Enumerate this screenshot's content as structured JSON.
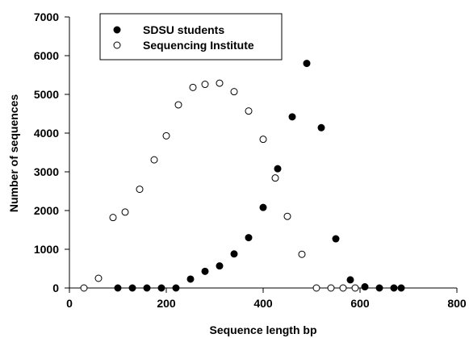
{
  "chart_data": {
    "type": "scatter",
    "title": "",
    "xlabel": "Sequence length bp",
    "ylabel": "Number of sequences",
    "xlim": [
      0,
      800
    ],
    "ylim": [
      0,
      7000
    ],
    "xticks": [
      0,
      200,
      400,
      600,
      800
    ],
    "yticks": [
      0,
      1000,
      2000,
      3000,
      4000,
      5000,
      6000,
      7000
    ],
    "grid": false,
    "legend_position": "top-left",
    "series": [
      {
        "name": "SDSU students",
        "marker": "filled-circle",
        "color": "#000000",
        "points": [
          [
            100,
            0
          ],
          [
            130,
            0
          ],
          [
            160,
            0
          ],
          [
            190,
            0
          ],
          [
            220,
            0
          ],
          [
            250,
            230
          ],
          [
            280,
            430
          ],
          [
            310,
            570
          ],
          [
            340,
            880
          ],
          [
            370,
            1300
          ],
          [
            400,
            2080
          ],
          [
            430,
            3080
          ],
          [
            460,
            4420
          ],
          [
            490,
            5800
          ],
          [
            520,
            4140
          ],
          [
            550,
            1270
          ],
          [
            580,
            210
          ],
          [
            610,
            30
          ],
          [
            640,
            0
          ],
          [
            670,
            0
          ],
          [
            685,
            0
          ]
        ]
      },
      {
        "name": "Sequencing Institute",
        "marker": "open-circle",
        "color": "#000000",
        "points": [
          [
            30,
            0
          ],
          [
            60,
            250
          ],
          [
            90,
            1820
          ],
          [
            115,
            1960
          ],
          [
            145,
            2550
          ],
          [
            175,
            3310
          ],
          [
            200,
            3930
          ],
          [
            225,
            4730
          ],
          [
            255,
            5180
          ],
          [
            280,
            5260
          ],
          [
            310,
            5290
          ],
          [
            340,
            5070
          ],
          [
            370,
            4570
          ],
          [
            400,
            3840
          ],
          [
            425,
            2840
          ],
          [
            450,
            1850
          ],
          [
            480,
            870
          ],
          [
            510,
            0
          ],
          [
            540,
            0
          ],
          [
            565,
            0
          ],
          [
            590,
            0
          ]
        ]
      }
    ]
  }
}
